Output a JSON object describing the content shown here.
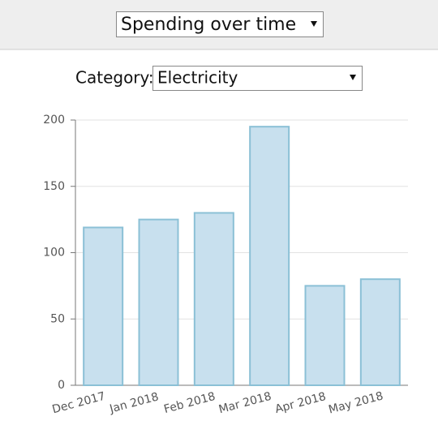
{
  "view_select": "Spending over time",
  "filter": {
    "label": "Category:",
    "value": "Electricity"
  },
  "chart_data": {
    "type": "bar",
    "categories": [
      "Dec 2017",
      "Jan 2018",
      "Feb 2018",
      "Mar 2018",
      "Apr 2018",
      "May 2018"
    ],
    "values": [
      119,
      125,
      130,
      195,
      75,
      80
    ],
    "color": "#c8e0ee",
    "ylim": [
      0,
      200
    ],
    "yticks": [
      0,
      50,
      100,
      150,
      200
    ],
    "grid": true
  }
}
